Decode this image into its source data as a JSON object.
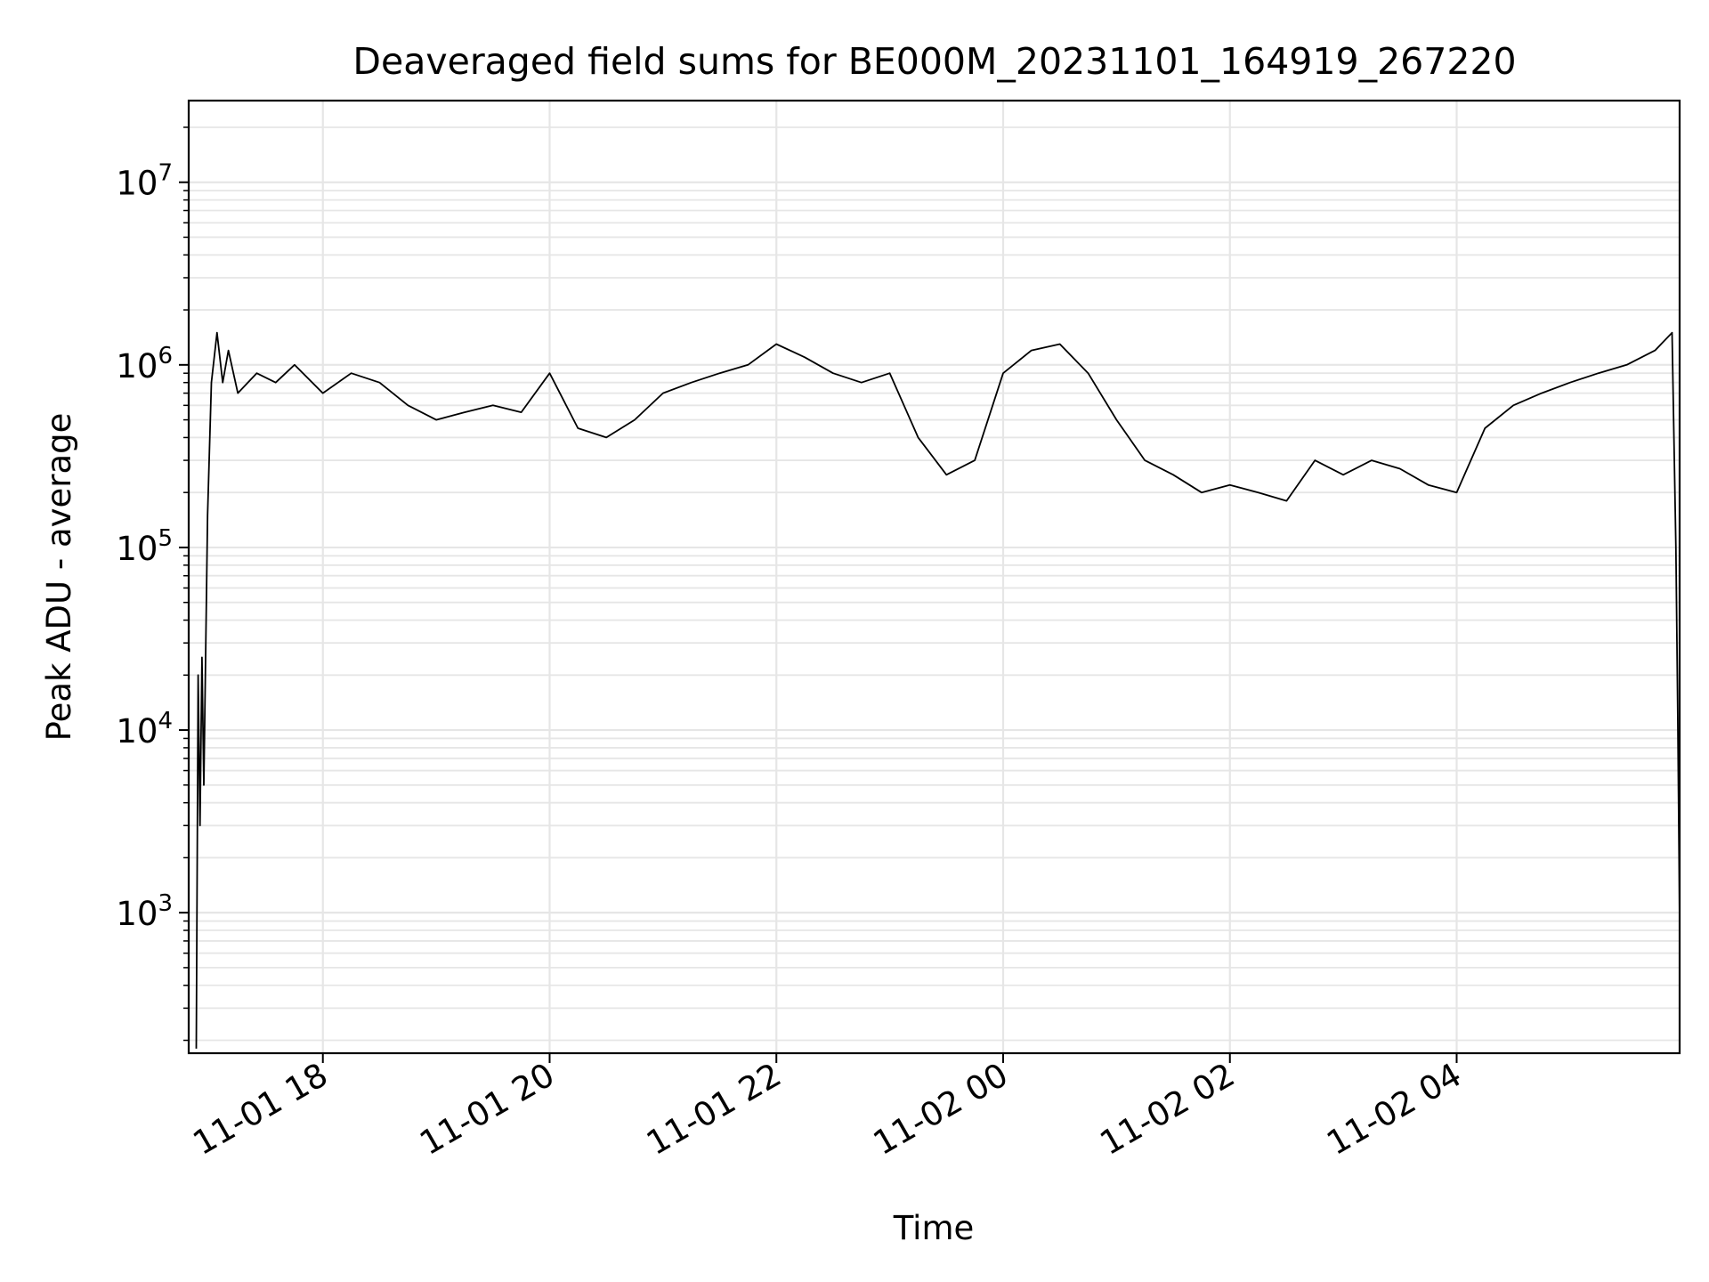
{
  "chart_data": {
    "type": "line",
    "title": "Deaveraged field sums for BE000M_20231101_164919_267220",
    "xlabel": "Time",
    "ylabel": "Peak ADU - average",
    "yscale": "log",
    "ylim": [
      170,
      28000000
    ],
    "xlim": [
      "2023-11-01 16:49",
      "2023-11-02 05:58"
    ],
    "grid": true,
    "line_color": "#000000",
    "x_ticks": [
      {
        "t": "2023-11-01 18:00",
        "label": "11-01 18"
      },
      {
        "t": "2023-11-01 20:00",
        "label": "11-01 20"
      },
      {
        "t": "2023-11-01 22:00",
        "label": "11-01 22"
      },
      {
        "t": "2023-11-02 00:00",
        "label": "11-02 00"
      },
      {
        "t": "2023-11-02 02:00",
        "label": "11-02 02"
      },
      {
        "t": "2023-11-02 04:00",
        "label": "11-02 04"
      }
    ],
    "y_ticks": [
      {
        "value": 1000,
        "base": "10",
        "exp": "3"
      },
      {
        "value": 10000,
        "base": "10",
        "exp": "4"
      },
      {
        "value": 100000,
        "base": "10",
        "exp": "5"
      },
      {
        "value": 1000000,
        "base": "10",
        "exp": "6"
      },
      {
        "value": 10000000,
        "base": "10",
        "exp": "7"
      }
    ],
    "series": [
      {
        "x": [
          "2023-11-01 16:53",
          "2023-11-01 16:54",
          "2023-11-01 16:55",
          "2023-11-01 16:56",
          "2023-11-01 16:57",
          "2023-11-01 16:59",
          "2023-11-01 17:01",
          "2023-11-01 17:04",
          "2023-11-01 17:07",
          "2023-11-01 17:10",
          "2023-11-01 17:15",
          "2023-11-01 17:25",
          "2023-11-01 17:35",
          "2023-11-01 17:45",
          "2023-11-01 18:00",
          "2023-11-01 18:15",
          "2023-11-01 18:30",
          "2023-11-01 18:45",
          "2023-11-01 19:00",
          "2023-11-01 19:15",
          "2023-11-01 19:30",
          "2023-11-01 19:45",
          "2023-11-01 20:00",
          "2023-11-01 20:15",
          "2023-11-01 20:30",
          "2023-11-01 20:45",
          "2023-11-01 21:00",
          "2023-11-01 21:15",
          "2023-11-01 21:30",
          "2023-11-01 21:45",
          "2023-11-01 22:00",
          "2023-11-01 22:15",
          "2023-11-01 22:30",
          "2023-11-01 22:45",
          "2023-11-01 23:00",
          "2023-11-01 23:15",
          "2023-11-01 23:30",
          "2023-11-01 23:45",
          "2023-11-02 00:00",
          "2023-11-02 00:15",
          "2023-11-02 00:30",
          "2023-11-02 00:45",
          "2023-11-02 01:00",
          "2023-11-02 01:15",
          "2023-11-02 01:30",
          "2023-11-02 01:45",
          "2023-11-02 02:00",
          "2023-11-02 02:15",
          "2023-11-02 02:30",
          "2023-11-02 02:45",
          "2023-11-02 03:00",
          "2023-11-02 03:15",
          "2023-11-02 03:30",
          "2023-11-02 03:45",
          "2023-11-02 04:00",
          "2023-11-02 04:15",
          "2023-11-02 04:30",
          "2023-11-02 04:45",
          "2023-11-02 05:00",
          "2023-11-02 05:15",
          "2023-11-02 05:30",
          "2023-11-02 05:45",
          "2023-11-02 05:54",
          "2023-11-02 05:56",
          "2023-11-02 05:57",
          "2023-11-02 05:58"
        ],
        "y": [
          180,
          20000,
          3000,
          25000,
          5000,
          150000,
          800000,
          1500000,
          800000,
          1200000,
          700000,
          900000,
          800000,
          1000000,
          700000,
          900000,
          800000,
          600000,
          500000,
          550000,
          600000,
          550000,
          900000,
          450000,
          400000,
          500000,
          700000,
          800000,
          900000,
          1000000,
          1300000,
          1100000,
          900000,
          800000,
          900000,
          400000,
          250000,
          300000,
          900000,
          1200000,
          1300000,
          900000,
          500000,
          300000,
          250000,
          200000,
          220000,
          200000,
          180000,
          300000,
          250000,
          300000,
          270000,
          220000,
          200000,
          450000,
          600000,
          700000,
          800000,
          900000,
          1000000,
          1200000,
          1500000,
          100000,
          12000,
          900
        ]
      }
    ]
  }
}
